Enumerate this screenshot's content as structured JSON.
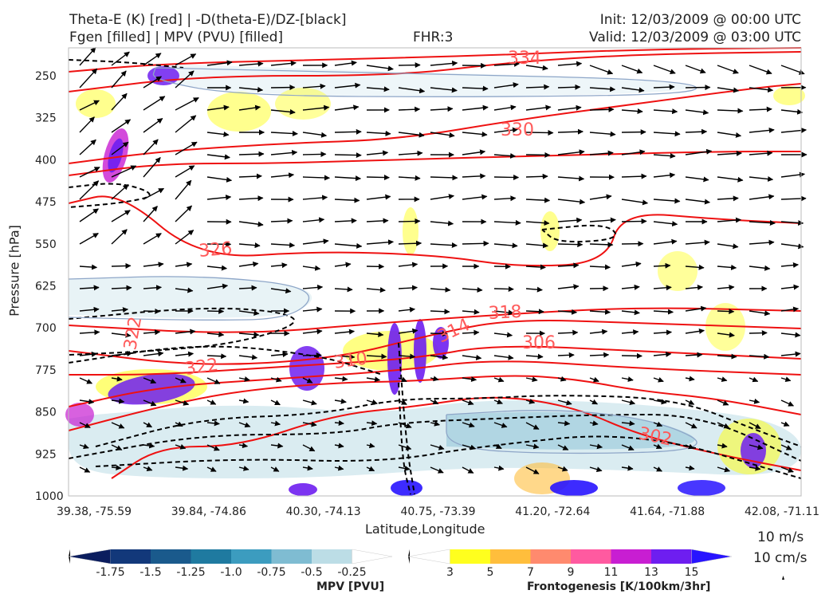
{
  "header": {
    "title_left_line1": "Theta-E (K) [red] | -D(theta-E)/DZ-[black]",
    "title_left_line2": "Fgen [filled] | MPV (PVU) [filled]",
    "title_center": "FHR:3",
    "title_right_line1": "Init: 12/03/2009 @ 00:00 UTC",
    "title_right_line2": "Valid: 12/03/2009 @ 03:00 UTC"
  },
  "chart_data": {
    "type": "cross-section",
    "xlabel": "Latitude,Longitude",
    "ylabel": "Pressure [hPa]",
    "x_ticks": [
      "39.38, -75.59",
      "39.84, -74.86",
      "40.30, -74.13",
      "40.75, -73.39",
      "41.20, -72.64",
      "41.64, -71.88",
      "42.08, -71.11"
    ],
    "y_ticks": [
      250,
      325,
      400,
      475,
      550,
      625,
      700,
      775,
      850,
      925,
      1000
    ],
    "ylim": [
      1000,
      200
    ],
    "y_inverted": true,
    "grid": false,
    "theta_e_contours": {
      "color": "#ee1111",
      "labels": [
        "334",
        "330",
        "326",
        "318",
        "314",
        "306",
        "310",
        "322",
        "322",
        "302"
      ]
    },
    "dthetae_dz_contours": {
      "color": "#000000",
      "style": "dashed"
    },
    "vectors": {
      "color": "#000000"
    },
    "reference_vector": {
      "label_horizontal": "10 m/s",
      "label_vertical": "10 cm/s"
    },
    "mpv_colorbar": {
      "title": "MPV [PVU]",
      "ticks": [
        "-1.75",
        "-1.5",
        "-1.25",
        "-1.0",
        "-0.75",
        "-0.5",
        "-0.25"
      ],
      "colors": [
        "#0b1d5e",
        "#12387a",
        "#1a5a8c",
        "#1f7aa0",
        "#3c9cbf",
        "#7fbcd2",
        "#bcdde6",
        "#ffffff"
      ]
    },
    "fgen_colorbar": {
      "title": "Frontogenesis [K/100km/3hr]",
      "ticks": [
        "3",
        "5",
        "7",
        "9",
        "11",
        "13",
        "15"
      ],
      "colors": [
        "#ffffff",
        "#ffff1e",
        "#ffbe3c",
        "#ff8a6e",
        "#ff5aa0",
        "#c81ed2",
        "#6e1ef0",
        "#2814ff"
      ]
    }
  }
}
